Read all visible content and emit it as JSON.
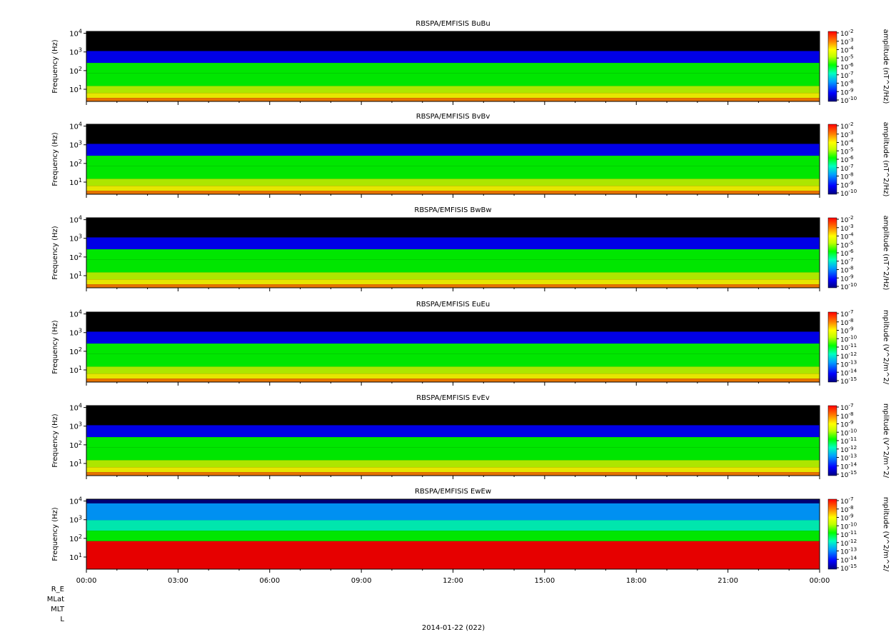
{
  "chart_data": [
    {
      "type": "heatmap",
      "title": "RBSPA/EMFISIS  BuBu",
      "ylabel": "Frequency (Hz)",
      "ytick_labels": [
        "10^1",
        "10^2",
        "10^3",
        "10^4"
      ],
      "ylog": true,
      "colorbar_label": "amplitude (nT^2/Hz)",
      "colorbar_ticks": [
        "10^-2",
        "10^-3",
        "10^-4",
        "10^-5",
        "10^-6",
        "10^-7",
        "10^-8",
        "10^-9",
        "10^-10"
      ],
      "zrange": [
        1e-10,
        0.01
      ]
    },
    {
      "type": "heatmap",
      "title": "RBSPA/EMFISIS  BvBv",
      "ylabel": "Frequency (Hz)",
      "ytick_labels": [
        "10^1",
        "10^2",
        "10^3",
        "10^4"
      ],
      "ylog": true,
      "colorbar_label": "amplitude (nT^2/Hz)",
      "colorbar_ticks": [
        "10^-2",
        "10^-3",
        "10^-4",
        "10^-5",
        "10^-6",
        "10^-7",
        "10^-8",
        "10^-9",
        "10^-10"
      ],
      "zrange": [
        1e-10,
        0.01
      ]
    },
    {
      "type": "heatmap",
      "title": "RBSPA/EMFISIS  BwBw",
      "ylabel": "Frequency (Hz)",
      "ytick_labels": [
        "10^1",
        "10^2",
        "10^3",
        "10^4"
      ],
      "ylog": true,
      "colorbar_label": "amplitude (nT^2/Hz)",
      "colorbar_ticks": [
        "10^-2",
        "10^-3",
        "10^-4",
        "10^-5",
        "10^-6",
        "10^-7",
        "10^-8",
        "10^-9",
        "10^-10"
      ],
      "zrange": [
        1e-10,
        0.01
      ]
    },
    {
      "type": "heatmap",
      "title": "RBSPA/EMFISIS  EuEu",
      "ylabel": "Frequency (Hz)",
      "ytick_labels": [
        "10^1",
        "10^2",
        "10^3",
        "10^4"
      ],
      "ylog": true,
      "colorbar_label": "mplitude (V^2/m^2/",
      "colorbar_ticks": [
        "10^-7",
        "10^-8",
        "10^-9",
        "10^-10",
        "10^-11",
        "10^-12",
        "10^-13",
        "10^-14",
        "10^-15"
      ],
      "zrange": [
        1e-15,
        1e-07
      ]
    },
    {
      "type": "heatmap",
      "title": "RBSPA/EMFISIS  EvEv",
      "ylabel": "Frequency (Hz)",
      "ytick_labels": [
        "10^1",
        "10^2",
        "10^3",
        "10^4"
      ],
      "ylog": true,
      "colorbar_label": "mplitude (V^2/m^2/",
      "colorbar_ticks": [
        "10^-7",
        "10^-8",
        "10^-9",
        "10^-10",
        "10^-11",
        "10^-12",
        "10^-13",
        "10^-14",
        "10^-15"
      ],
      "zrange": [
        1e-15,
        1e-07
      ]
    },
    {
      "type": "heatmap",
      "title": "RBSPA/EMFISIS  EwEw",
      "ylabel": "Frequency (Hz)",
      "ytick_labels": [
        "10^1",
        "10^2",
        "10^3",
        "10^4"
      ],
      "ylog": true,
      "colorbar_label": "mplitude (V^2/m^2/",
      "colorbar_ticks": [
        "10^-7",
        "10^-8",
        "10^-9",
        "10^-10",
        "10^-11",
        "10^-12",
        "10^-13",
        "10^-14",
        "10^-15"
      ],
      "zrange": [
        1e-15,
        1e-07
      ]
    }
  ],
  "x_axis": {
    "tick_labels": [
      "00:00",
      "03:00",
      "06:00",
      "09:00",
      "12:00",
      "15:00",
      "18:00",
      "21:00",
      "00:00"
    ],
    "range_hours": [
      0,
      24
    ],
    "date_label": "2014-01-22 (022)"
  },
  "footer_labels": [
    "R_E",
    "MLat",
    "MLT",
    "L"
  ],
  "colors": {
    "background": "#000000",
    "colormap": [
      "#000080",
      "#0000ff",
      "#00a0ff",
      "#00ffc0",
      "#00ff00",
      "#c0ff00",
      "#ffff00",
      "#ff8000",
      "#ff0000"
    ]
  }
}
